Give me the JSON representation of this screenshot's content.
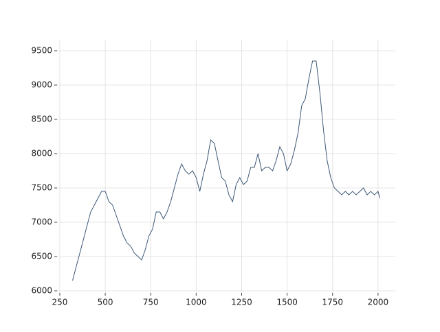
{
  "chart_data": {
    "type": "line",
    "x": [
      320,
      340,
      360,
      380,
      400,
      420,
      440,
      460,
      480,
      500,
      520,
      540,
      560,
      580,
      600,
      620,
      640,
      660,
      680,
      700,
      720,
      740,
      760,
      780,
      800,
      820,
      840,
      860,
      880,
      900,
      920,
      940,
      960,
      980,
      1000,
      1020,
      1040,
      1060,
      1080,
      1100,
      1120,
      1140,
      1160,
      1180,
      1200,
      1220,
      1240,
      1260,
      1280,
      1300,
      1320,
      1340,
      1360,
      1380,
      1400,
      1420,
      1440,
      1460,
      1480,
      1500,
      1520,
      1540,
      1560,
      1580,
      1600,
      1620,
      1640,
      1660,
      1680,
      1700,
      1720,
      1740,
      1760,
      1780,
      1800,
      1820,
      1840,
      1860,
      1880,
      1900,
      1920,
      1940,
      1960,
      1980,
      2000,
      2010
    ],
    "series": [
      {
        "color": "#3b5675",
        "values": [
          6150,
          6350,
          6550,
          6750,
          6950,
          7150,
          7250,
          7350,
          7450,
          7450,
          7300,
          7250,
          7100,
          6950,
          6800,
          6700,
          6650,
          6550,
          6500,
          6450,
          6600,
          6800,
          6900,
          7150,
          7150,
          7050,
          7150,
          7300,
          7500,
          7700,
          7850,
          7750,
          7700,
          7750,
          7650,
          7450,
          7700,
          7900,
          8200,
          8150,
          7900,
          7650,
          7600,
          7400,
          7300,
          7550,
          7650,
          7550,
          7600,
          7800,
          7800,
          8000,
          7750,
          7800,
          7800,
          7750,
          7900,
          8100,
          8000,
          7750,
          7850,
          8050,
          8300,
          8700,
          8800,
          9100,
          9350,
          9350,
          8900,
          8350,
          7900,
          7650,
          7500,
          7450,
          7400,
          7450,
          7400,
          7450,
          7400,
          7450,
          7500,
          7400,
          7450,
          7400,
          7450,
          7350
        ]
      }
    ],
    "xlim": [
      235,
      2095
    ],
    "ylim": [
      5970,
      9660
    ],
    "xticks": [
      250,
      500,
      750,
      1000,
      1250,
      1500,
      1750,
      2000
    ],
    "yticks": [
      6000,
      6500,
      7000,
      7500,
      8000,
      8500,
      9000,
      9500
    ],
    "grid": true
  }
}
